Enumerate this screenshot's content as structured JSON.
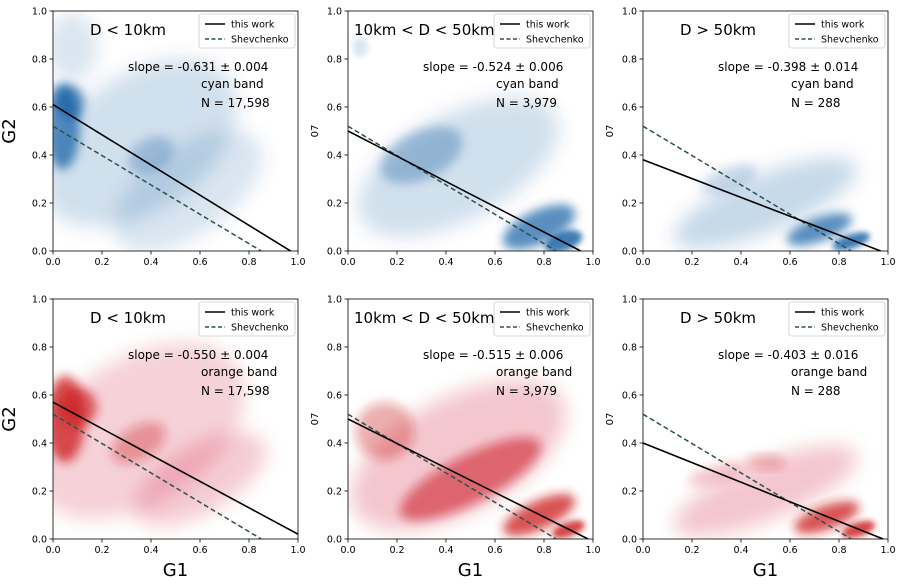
{
  "chart_data": [
    {
      "type": "scatter",
      "title": "D < 10km",
      "band": "cyan band",
      "slope_text": "slope = -0.631 ± 0.004",
      "n_text": "N = 17,598",
      "xlabel": "",
      "ylabel": "G2",
      "xlim": [
        0,
        1
      ],
      "ylim": [
        0,
        1
      ],
      "xticks": [
        "0.0",
        "0.2",
        "0.4",
        "0.6",
        "0.8",
        "1.0"
      ],
      "yticks": [
        "0.0",
        "0.2",
        "0.4",
        "0.6",
        "0.8",
        "1.0"
      ],
      "legend": [
        "this work",
        "Shevchenko"
      ],
      "legend_position": "top-right",
      "colormap": "blues",
      "fit": {
        "x": [
          0,
          0.97
        ],
        "y": [
          0.61,
          0.0
        ]
      },
      "reference": {
        "x": [
          0,
          0.85
        ],
        "y": [
          0.52,
          0.0
        ]
      }
    },
    {
      "type": "scatter",
      "title": "10km < D < 50km",
      "band": "cyan band",
      "slope_text": "slope = -0.524 ± 0.006",
      "n_text": "N = 3,979",
      "xlabel": "",
      "ylabel": "07",
      "xlim": [
        0,
        1
      ],
      "ylim": [
        0,
        1
      ],
      "xticks": [
        "0.0",
        "0.2",
        "0.4",
        "0.6",
        "0.8",
        "1.0"
      ],
      "yticks": [
        "0.0",
        "0.2",
        "0.4",
        "0.6",
        "0.8",
        "1.0"
      ],
      "legend": [
        "this work",
        "Shevchenko"
      ],
      "legend_position": "top-right",
      "colormap": "blues",
      "fit": {
        "x": [
          0,
          0.95
        ],
        "y": [
          0.5,
          0.0
        ]
      },
      "reference": {
        "x": [
          0,
          0.85
        ],
        "y": [
          0.52,
          0.0
        ]
      }
    },
    {
      "type": "scatter",
      "title": "D > 50km",
      "band": "cyan band",
      "slope_text": "slope = -0.398 ± 0.014",
      "n_text": "N = 288",
      "xlabel": "",
      "ylabel": "07",
      "xlim": [
        0,
        1
      ],
      "ylim": [
        0,
        1
      ],
      "xticks": [
        "0.0",
        "0.2",
        "0.4",
        "0.6",
        "0.8",
        "1.0"
      ],
      "yticks": [
        "0.0",
        "0.2",
        "0.4",
        "0.6",
        "0.8",
        "1.0"
      ],
      "legend": [
        "this work",
        "Shevchenko"
      ],
      "legend_position": "top-right",
      "colormap": "blues",
      "fit": {
        "x": [
          0,
          0.97
        ],
        "y": [
          0.38,
          0.0
        ]
      },
      "reference": {
        "x": [
          0,
          0.85
        ],
        "y": [
          0.52,
          0.0
        ]
      }
    },
    {
      "type": "scatter",
      "title": "D < 10km",
      "band": "orange band",
      "slope_text": "slope = -0.550 ± 0.004",
      "n_text": "N = 17,598",
      "xlabel": "G1",
      "ylabel": "G2",
      "xlim": [
        0,
        1
      ],
      "ylim": [
        0,
        1
      ],
      "xticks": [
        "0.0",
        "0.2",
        "0.4",
        "0.6",
        "0.8",
        "1.0"
      ],
      "yticks": [
        "0.0",
        "0.2",
        "0.4",
        "0.6",
        "0.8",
        "1.0"
      ],
      "legend": [
        "this work",
        "Shevchenko"
      ],
      "legend_position": "top-right",
      "colormap": "reds",
      "fit": {
        "x": [
          0,
          1.0
        ],
        "y": [
          0.57,
          0.02
        ]
      },
      "reference": {
        "x": [
          0,
          0.85
        ],
        "y": [
          0.52,
          0.0
        ]
      }
    },
    {
      "type": "scatter",
      "title": "10km < D < 50km",
      "band": "orange band",
      "slope_text": "slope = -0.515 ± 0.006",
      "n_text": "N = 3,979",
      "xlabel": "G1",
      "ylabel": "07",
      "xlim": [
        0,
        1
      ],
      "ylim": [
        0,
        1
      ],
      "xticks": [
        "0.0",
        "0.2",
        "0.4",
        "0.6",
        "0.8",
        "1.0"
      ],
      "yticks": [
        "0.0",
        "0.2",
        "0.4",
        "0.6",
        "0.8",
        "1.0"
      ],
      "legend": [
        "this work",
        "Shevchenko"
      ],
      "legend_position": "top-right",
      "colormap": "reds",
      "fit": {
        "x": [
          0,
          0.98
        ],
        "y": [
          0.5,
          0.0
        ]
      },
      "reference": {
        "x": [
          0,
          0.85
        ],
        "y": [
          0.52,
          0.0
        ]
      }
    },
    {
      "type": "scatter",
      "title": "D > 50km",
      "band": "orange band",
      "slope_text": "slope = -0.403 ± 0.016",
      "n_text": "N = 288",
      "xlabel": "G1",
      "ylabel": "07",
      "xlim": [
        0,
        1
      ],
      "ylim": [
        0,
        1
      ],
      "xticks": [
        "0.0",
        "0.2",
        "0.4",
        "0.6",
        "0.8",
        "1.0"
      ],
      "yticks": [
        "0.0",
        "0.2",
        "0.4",
        "0.6",
        "0.8",
        "1.0"
      ],
      "legend": [
        "this work",
        "Shevchenko"
      ],
      "legend_position": "top-right",
      "colormap": "reds",
      "fit": {
        "x": [
          0,
          0.98
        ],
        "y": [
          0.4,
          0.0
        ]
      },
      "reference": {
        "x": [
          0,
          0.85
        ],
        "y": [
          0.52,
          0.0
        ]
      }
    }
  ],
  "colors": {
    "fit_line": "#000000",
    "reference_line": "#2f4f4f",
    "blues_dark": "#08519c",
    "reds_dark": "#cb181d"
  }
}
